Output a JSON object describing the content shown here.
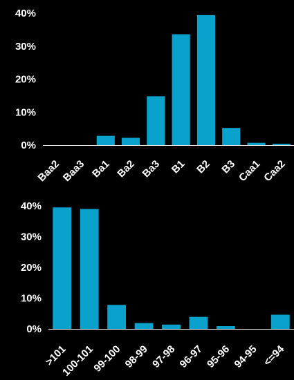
{
  "chart_data": [
    {
      "type": "bar",
      "title": "",
      "xlabel": "",
      "ylabel": "",
      "categories": [
        "Baa2",
        "Baa3",
        "Ba1",
        "Ba2",
        "Ba3",
        "B1",
        "B2",
        "B3",
        "Caa1",
        "Caa2"
      ],
      "values": [
        0,
        0,
        2.8,
        2.2,
        14.8,
        33.6,
        39.4,
        5.2,
        0.7,
        0.4
      ],
      "ylim": [
        0,
        40
      ],
      "yticks": [
        "0%",
        "10%",
        "20%",
        "30%",
        "40%"
      ],
      "grid": false,
      "legend": "none",
      "bar_color": "#0aa2cc",
      "axis_color": "#ffffff"
    },
    {
      "type": "bar",
      "title": "",
      "xlabel": "",
      "ylabel": "",
      "categories": [
        ">101",
        "100-101",
        "99-100",
        "98-99",
        "97-98",
        "96-97",
        "95-96",
        "94-95",
        "<=94"
      ],
      "values": [
        39.5,
        39.0,
        7.8,
        1.9,
        1.4,
        3.9,
        0.9,
        0,
        4.6
      ],
      "ylim": [
        0,
        40
      ],
      "yticks": [
        "0%",
        "10%",
        "20%",
        "30%",
        "40%"
      ],
      "grid": false,
      "legend": "none",
      "bar_color": "#0aa2cc",
      "axis_color": "#ffffff"
    }
  ]
}
